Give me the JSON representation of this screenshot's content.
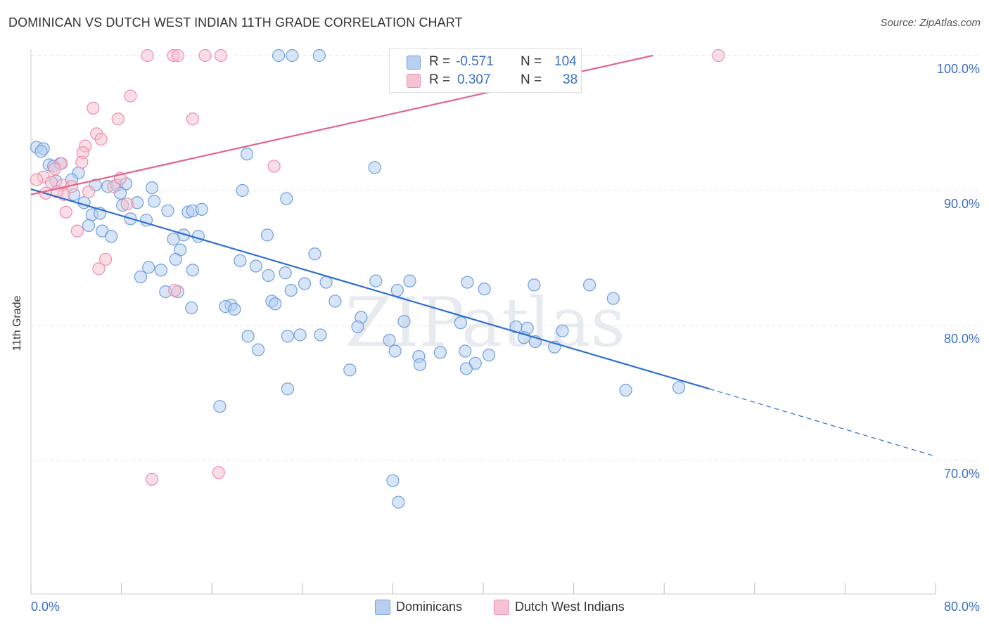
{
  "title": "DOMINICAN VS DUTCH WEST INDIAN 11TH GRADE CORRELATION CHART",
  "source": "Source: ZipAtlas.com",
  "watermark": "ZIPatlas",
  "legend_top": {
    "rows": [
      {
        "r_label": "R =",
        "r_value": "-0.571",
        "n_label": "N =",
        "n_value": "104"
      },
      {
        "r_label": "R =",
        "r_value": "0.307",
        "n_label": "N =",
        "n_value": "38"
      }
    ]
  },
  "legend_bottom": {
    "items": [
      {
        "label": "Dominicans"
      },
      {
        "label": "Dutch West Indians"
      }
    ]
  },
  "colors": {
    "blue_fill": "#b8cff0",
    "blue_stroke": "#6f9fdf",
    "blue_line": "#2f6fd0",
    "pink_fill": "#f6c3d2",
    "pink_stroke": "#ec8fab",
    "pink_line": "#e0668f",
    "grid": "#e6e6e6",
    "tick_label": "#3b6fc4"
  },
  "chart_data": {
    "type": "scatter",
    "title": "DOMINICAN VS DUTCH WEST INDIAN 11TH GRADE CORRELATION CHART",
    "xlabel": "",
    "ylabel": "11th Grade",
    "xlim": [
      0,
      80
    ],
    "ylim": [
      60,
      100.5
    ],
    "x_tick_labels": [
      "0.0%",
      "80.0%"
    ],
    "y_ticks": [
      70,
      80,
      90,
      100
    ],
    "y_tick_labels": [
      "70.0%",
      "80.0%",
      "90.0%",
      "100.0%"
    ],
    "grid": true,
    "legend_position": "top-center",
    "series": [
      {
        "name": "Dominicans",
        "r": -0.571,
        "n": 104,
        "trend": {
          "x1": 0,
          "y1": 90.1,
          "x2": 60,
          "y2": 75.3,
          "dashed_to_x": 80,
          "dashed_to_y": 70.3
        },
        "points": [
          [
            0.5,
            93.2
          ],
          [
            1.1,
            93.1
          ],
          [
            0.9,
            92.9
          ],
          [
            1.6,
            91.9
          ],
          [
            2.6,
            92.0
          ],
          [
            2.0,
            91.8
          ],
          [
            4.2,
            91.3
          ],
          [
            3.6,
            90.8
          ],
          [
            2.2,
            90.7
          ],
          [
            5.7,
            90.4
          ],
          [
            6.8,
            90.3
          ],
          [
            7.6,
            90.4
          ],
          [
            8.4,
            90.5
          ],
          [
            10.7,
            90.2
          ],
          [
            7.9,
            89.8
          ],
          [
            3.8,
            89.7
          ],
          [
            4.7,
            89.1
          ],
          [
            9.4,
            89.1
          ],
          [
            10.9,
            89.2
          ],
          [
            8.1,
            88.9
          ],
          [
            5.4,
            88.2
          ],
          [
            6.1,
            88.3
          ],
          [
            12.1,
            88.5
          ],
          [
            13.9,
            88.4
          ],
          [
            14.3,
            88.5
          ],
          [
            15.1,
            88.6
          ],
          [
            8.8,
            87.9
          ],
          [
            10.2,
            87.8
          ],
          [
            5.1,
            87.4
          ],
          [
            6.3,
            87.0
          ],
          [
            7.1,
            86.6
          ],
          [
            13.5,
            86.7
          ],
          [
            12.6,
            86.4
          ],
          [
            14.8,
            86.6
          ],
          [
            20.9,
            86.7
          ],
          [
            13.2,
            85.6
          ],
          [
            18.5,
            84.8
          ],
          [
            12.8,
            84.9
          ],
          [
            25.1,
            85.3
          ],
          [
            10.4,
            84.3
          ],
          [
            11.5,
            84.1
          ],
          [
            14.3,
            84.1
          ],
          [
            19.9,
            84.4
          ],
          [
            21.0,
            83.7
          ],
          [
            22.5,
            83.9
          ],
          [
            9.7,
            83.6
          ],
          [
            24.2,
            83.1
          ],
          [
            26.1,
            83.2
          ],
          [
            30.5,
            83.3
          ],
          [
            33.5,
            83.3
          ],
          [
            32.4,
            82.6
          ],
          [
            38.6,
            83.2
          ],
          [
            40.1,
            82.7
          ],
          [
            44.5,
            83.0
          ],
          [
            49.4,
            83.0
          ],
          [
            51.5,
            82.0
          ],
          [
            13.0,
            82.5
          ],
          [
            11.9,
            82.5
          ],
          [
            23.0,
            82.6
          ],
          [
            21.3,
            81.8
          ],
          [
            21.6,
            81.6
          ],
          [
            17.7,
            81.5
          ],
          [
            17.2,
            81.4
          ],
          [
            18.0,
            81.2
          ],
          [
            14.2,
            81.3
          ],
          [
            26.9,
            81.8
          ],
          [
            29.2,
            80.6
          ],
          [
            33.0,
            80.3
          ],
          [
            38.0,
            80.2
          ],
          [
            42.9,
            79.9
          ],
          [
            43.9,
            79.8
          ],
          [
            47.0,
            79.6
          ],
          [
            28.9,
            79.9
          ],
          [
            23.8,
            79.3
          ],
          [
            25.6,
            79.3
          ],
          [
            22.7,
            79.2
          ],
          [
            19.2,
            79.2
          ],
          [
            31.7,
            78.9
          ],
          [
            20.1,
            78.2
          ],
          [
            32.2,
            78.1
          ],
          [
            38.4,
            78.1
          ],
          [
            36.2,
            78.0
          ],
          [
            40.5,
            77.8
          ],
          [
            39.3,
            77.2
          ],
          [
            44.6,
            78.8
          ],
          [
            43.6,
            79.1
          ],
          [
            46.3,
            78.4
          ],
          [
            28.2,
            76.7
          ],
          [
            34.3,
            77.7
          ],
          [
            22.7,
            75.3
          ],
          [
            34.4,
            77.1
          ],
          [
            38.5,
            76.8
          ],
          [
            52.6,
            75.2
          ],
          [
            57.3,
            75.4
          ],
          [
            16.7,
            74.0
          ],
          [
            32.0,
            68.5
          ],
          [
            32.5,
            66.9
          ],
          [
            21.9,
            100.0
          ],
          [
            23.1,
            100.0
          ],
          [
            25.5,
            100.0
          ],
          [
            30.4,
            91.7
          ],
          [
            19.1,
            92.7
          ],
          [
            18.7,
            90.0
          ],
          [
            22.6,
            89.4
          ]
        ]
      },
      {
        "name": "Dutch West Indians",
        "r": 0.307,
        "n": 38,
        "trend": {
          "x1": 0,
          "y1": 89.7,
          "x2": 55,
          "y2": 100.0
        },
        "points": [
          [
            10.3,
            100.0
          ],
          [
            12.6,
            100.0
          ],
          [
            13.0,
            100.0
          ],
          [
            15.4,
            100.0
          ],
          [
            16.8,
            100.0
          ],
          [
            34.5,
            100.0
          ],
          [
            60.8,
            100.0
          ],
          [
            8.8,
            97.0
          ],
          [
            5.5,
            96.1
          ],
          [
            7.7,
            95.3
          ],
          [
            14.3,
            95.3
          ],
          [
            5.8,
            94.2
          ],
          [
            6.2,
            93.8
          ],
          [
            4.8,
            93.3
          ],
          [
            4.6,
            92.8
          ],
          [
            4.5,
            92.1
          ],
          [
            2.7,
            92.0
          ],
          [
            21.5,
            91.8
          ],
          [
            2.1,
            91.6
          ],
          [
            1.1,
            91.0
          ],
          [
            0.5,
            90.8
          ],
          [
            1.8,
            90.6
          ],
          [
            2.8,
            90.4
          ],
          [
            7.3,
            90.3
          ],
          [
            3.6,
            90.3
          ],
          [
            5.1,
            89.9
          ],
          [
            2.9,
            89.7
          ],
          [
            2.3,
            89.9
          ],
          [
            1.3,
            89.8
          ],
          [
            8.5,
            89.0
          ],
          [
            3.1,
            88.4
          ],
          [
            7.9,
            90.9
          ],
          [
            4.1,
            87.0
          ],
          [
            6.6,
            84.9
          ],
          [
            6.0,
            84.2
          ],
          [
            12.7,
            82.6
          ],
          [
            10.7,
            68.6
          ],
          [
            16.6,
            69.1
          ]
        ]
      }
    ]
  }
}
